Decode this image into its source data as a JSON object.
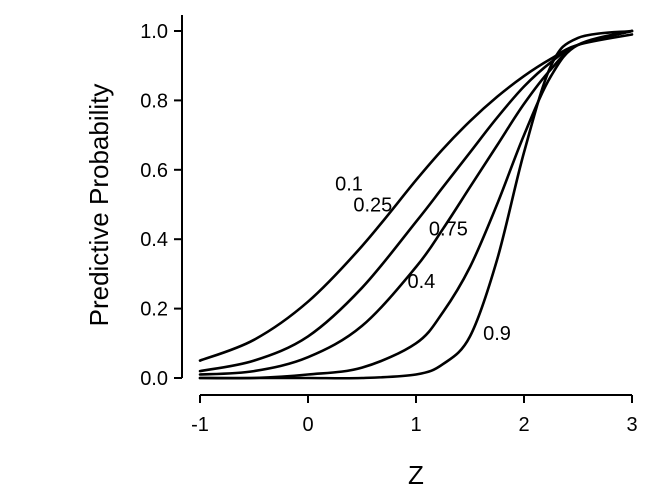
{
  "chart_data": {
    "type": "line",
    "title": "",
    "xlabel": "Z",
    "ylabel": "Predictive Probability",
    "xlim": [
      -1,
      3
    ],
    "ylim": [
      0,
      1
    ],
    "x_ticks": [
      -1,
      0,
      1,
      2,
      3
    ],
    "x_tick_labels": [
      "-1",
      "0",
      "1",
      "2",
      "3"
    ],
    "y_ticks": [
      0,
      0.2,
      0.4,
      0.6,
      0.8,
      1
    ],
    "y_tick_labels": [
      "0.0",
      "0.2",
      "0.4",
      "0.6",
      "0.8",
      "1.0"
    ],
    "grid": false,
    "legend": "none",
    "x": [
      -1,
      -0.5,
      0,
      0.5,
      1,
      1.25,
      1.5,
      1.75,
      2,
      2.25,
      2.5,
      3
    ],
    "series": [
      {
        "name": "0.1",
        "values": [
          0.05,
          0.11,
          0.22,
          0.38,
          0.57,
          0.66,
          0.74,
          0.81,
          0.87,
          0.92,
          0.96,
          0.99
        ]
      },
      {
        "name": "0.25",
        "values": [
          0.02,
          0.05,
          0.12,
          0.26,
          0.45,
          0.55,
          0.65,
          0.75,
          0.84,
          0.91,
          0.96,
          1.0
        ]
      },
      {
        "name": "0.4",
        "values": [
          0.01,
          0.02,
          0.06,
          0.15,
          0.32,
          0.43,
          0.55,
          0.67,
          0.79,
          0.89,
          0.96,
          1.0
        ]
      },
      {
        "name": "0.75",
        "values": [
          0.0,
          0.0,
          0.01,
          0.03,
          0.1,
          0.19,
          0.32,
          0.5,
          0.7,
          0.87,
          0.96,
          1.0
        ]
      },
      {
        "name": "0.9",
        "values": [
          0.0,
          0.0,
          0.0,
          0.0,
          0.01,
          0.04,
          0.12,
          0.34,
          0.65,
          0.9,
          0.98,
          1.0
        ]
      }
    ],
    "annotations": [
      {
        "text": "0.1",
        "x": 0.38,
        "y": 0.54
      },
      {
        "text": "0.25",
        "x": 0.6,
        "y": 0.48
      },
      {
        "text": "0.75",
        "x": 1.3,
        "y": 0.41
      },
      {
        "text": "0.4",
        "x": 1.05,
        "y": 0.26
      },
      {
        "text": "0.9",
        "x": 1.75,
        "y": 0.11
      }
    ]
  }
}
